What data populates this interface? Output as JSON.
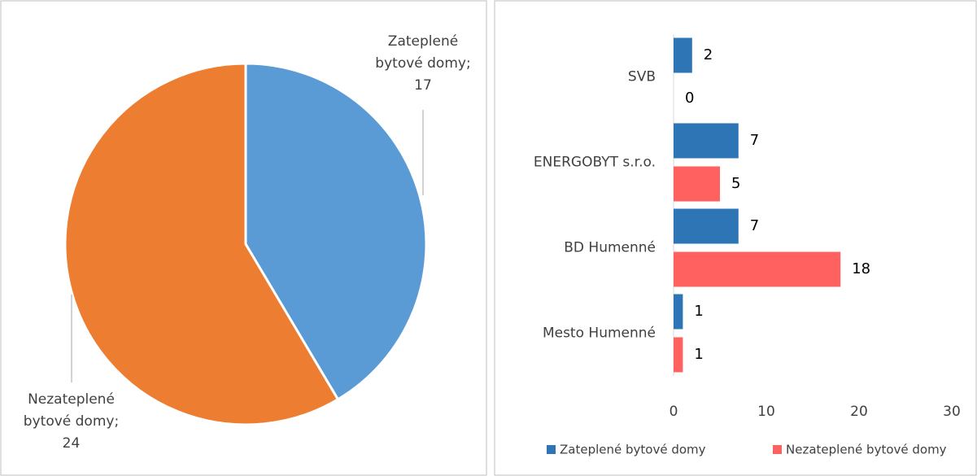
{
  "chart_data": [
    {
      "type": "pie",
      "categories": [
        "Zateplené bytové domy",
        "Nezateplené bytové domy"
      ],
      "values": [
        17,
        24
      ],
      "value_labels": [
        "Zateplené bytové domy; 17",
        "Nezateplené bytové domy; 24"
      ],
      "colors": [
        "#5b9bd5",
        "#ed7d31"
      ]
    },
    {
      "type": "bar",
      "orientation": "horizontal",
      "categories": [
        "SVB",
        "ENERGOBYT s.r.o.",
        "BD Humenné",
        "Mesto Humenné"
      ],
      "series": [
        {
          "name": "Zateplené bytové domy",
          "color": "#2e75b6",
          "values": [
            2,
            7,
            7,
            1
          ]
        },
        {
          "name": "Nezateplené bytové domy",
          "color": "#ff6161",
          "values": [
            0,
            5,
            18,
            1
          ]
        }
      ],
      "xlim": [
        0,
        30
      ],
      "xticks": [
        0,
        10,
        20,
        30
      ],
      "legend": "bottom"
    }
  ]
}
